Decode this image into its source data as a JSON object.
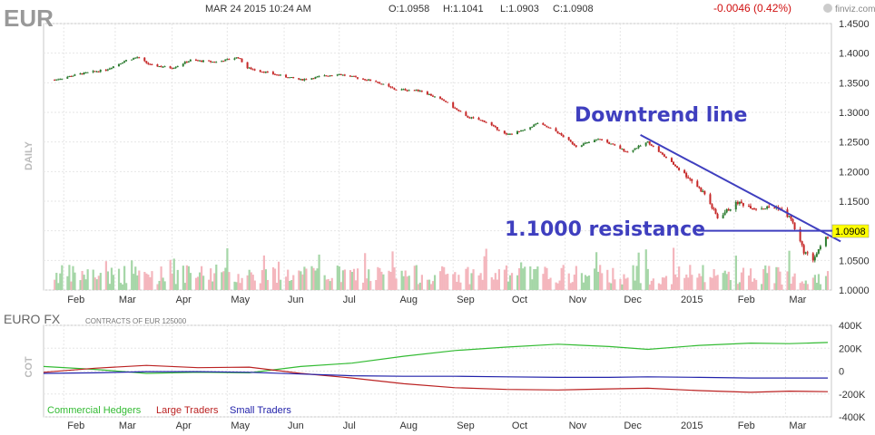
{
  "header": {
    "symbol": "EUR",
    "timestamp": "MAR 24 2015 10:24 AM",
    "open": "O:1.0958",
    "high": "H:1.1041",
    "low": "L:1.0903",
    "close": "C:1.0908",
    "change": "-0.0046 (0.42%)",
    "brand": "finviz.com"
  },
  "colors": {
    "up": "#2e7d32",
    "down": "#c62828",
    "vol_up": "#a5d6a7",
    "vol_down": "#f4b6bd",
    "annotation": "#3f3fbf",
    "commercial": "#33bb33",
    "large": "#bb2222",
    "small": "#2222aa",
    "change": "#d01010",
    "last_price_bg": "#ffff00"
  },
  "chart_data": [
    {
      "type": "candlestick",
      "period_label": "DAILY",
      "x_tick_labels": [
        "Feb",
        "Mar",
        "Apr",
        "May",
        "Jun",
        "Jul",
        "Aug",
        "Sep",
        "Oct",
        "Nov",
        "Dec",
        "2015",
        "Feb",
        "Mar"
      ],
      "y_tick_labels": [
        "1.4500",
        "1.4000",
        "1.3500",
        "1.3000",
        "1.2500",
        "1.2000",
        "1.1500",
        "1.1000",
        "1.0500",
        "1.0000"
      ],
      "ylim": [
        1.0,
        1.45
      ],
      "last_price_label": "1.0908",
      "approx_close_path": [
        [
          "2014-01-27",
          1.355
        ],
        [
          "2014-02-10",
          1.365
        ],
        [
          "2014-02-24",
          1.372
        ],
        [
          "2014-03-07",
          1.388
        ],
        [
          "2014-03-13",
          1.393
        ],
        [
          "2014-03-20",
          1.38
        ],
        [
          "2014-04-01",
          1.375
        ],
        [
          "2014-04-11",
          1.388
        ],
        [
          "2014-04-25",
          1.385
        ],
        [
          "2014-05-07",
          1.393
        ],
        [
          "2014-05-12",
          1.375
        ],
        [
          "2014-05-30",
          1.362
        ],
        [
          "2014-06-10",
          1.355
        ],
        [
          "2014-06-30",
          1.365
        ],
        [
          "2014-07-08",
          1.36
        ],
        [
          "2014-07-21",
          1.352
        ],
        [
          "2014-07-31",
          1.339
        ],
        [
          "2014-08-14",
          1.337
        ],
        [
          "2014-08-28",
          1.318
        ],
        [
          "2014-09-08",
          1.293
        ],
        [
          "2014-09-19",
          1.284
        ],
        [
          "2014-09-30",
          1.262
        ],
        [
          "2014-10-10",
          1.27
        ],
        [
          "2014-10-17",
          1.282
        ],
        [
          "2014-10-27",
          1.268
        ],
        [
          "2014-11-07",
          1.243
        ],
        [
          "2014-11-20",
          1.255
        ],
        [
          "2014-12-05",
          1.233
        ],
        [
          "2014-12-16",
          1.25
        ],
        [
          "2014-12-29",
          1.215
        ],
        [
          "2015-01-09",
          1.185
        ],
        [
          "2015-01-16",
          1.162
        ],
        [
          "2015-01-23",
          1.122
        ],
        [
          "2015-02-03",
          1.148
        ],
        [
          "2015-02-13",
          1.138
        ],
        [
          "2015-02-25",
          1.14
        ],
        [
          "2015-03-04",
          1.12
        ],
        [
          "2015-03-11",
          1.065
        ],
        [
          "2015-03-16",
          1.052
        ],
        [
          "2015-03-24",
          1.0908
        ]
      ],
      "annotations": [
        {
          "text": "Downtrend line",
          "from": [
            "2014-12-12",
            1.262
          ],
          "to": [
            "2015-03-31",
            1.082
          ]
        },
        {
          "text": "1.1000 resistance",
          "from": [
            "2015-01-12",
            1.1
          ],
          "to": [
            "2015-03-30",
            1.1
          ]
        }
      ]
    },
    {
      "type": "line",
      "title": "EURO FX",
      "subtitle": "CONTRACTS OF EUR 125000",
      "ylabel": "COT",
      "y_tick_labels": [
        "400K",
        "200K",
        "0",
        "-200K",
        "-400K"
      ],
      "ylim": [
        -400000,
        400000
      ],
      "x_tick_labels": [
        "Feb",
        "Mar",
        "Apr",
        "May",
        "Jun",
        "Jul",
        "Aug",
        "Sep",
        "Oct",
        "Nov",
        "Dec",
        "2015",
        "Feb",
        "Mar"
      ],
      "series": [
        {
          "name": "Commercial Hedgers",
          "points": [
            [
              "2014-01-21",
              40000
            ],
            [
              "2014-02-18",
              15000
            ],
            [
              "2014-03-18",
              -20000
            ],
            [
              "2014-04-15",
              -10000
            ],
            [
              "2014-05-13",
              -15000
            ],
            [
              "2014-06-10",
              40000
            ],
            [
              "2014-07-08",
              70000
            ],
            [
              "2014-08-05",
              130000
            ],
            [
              "2014-09-02",
              180000
            ],
            [
              "2014-09-30",
              210000
            ],
            [
              "2014-10-28",
              235000
            ],
            [
              "2014-11-25",
              215000
            ],
            [
              "2014-12-16",
              190000
            ],
            [
              "2015-01-13",
              225000
            ],
            [
              "2015-02-10",
              245000
            ],
            [
              "2015-03-03",
              240000
            ],
            [
              "2015-03-24",
              250000
            ]
          ]
        },
        {
          "name": "Large Traders",
          "points": [
            [
              "2014-01-21",
              -10000
            ],
            [
              "2014-02-18",
              25000
            ],
            [
              "2014-03-18",
              50000
            ],
            [
              "2014-04-15",
              30000
            ],
            [
              "2014-05-13",
              35000
            ],
            [
              "2014-06-10",
              -20000
            ],
            [
              "2014-07-08",
              -60000
            ],
            [
              "2014-08-05",
              -110000
            ],
            [
              "2014-09-02",
              -145000
            ],
            [
              "2014-09-30",
              -160000
            ],
            [
              "2014-10-28",
              -165000
            ],
            [
              "2014-11-25",
              -155000
            ],
            [
              "2014-12-16",
              -150000
            ],
            [
              "2015-01-13",
              -170000
            ],
            [
              "2015-02-10",
              -185000
            ],
            [
              "2015-03-03",
              -175000
            ],
            [
              "2015-03-24",
              -180000
            ]
          ]
        },
        {
          "name": "Small Traders",
          "points": [
            [
              "2014-01-21",
              -20000
            ],
            [
              "2014-02-18",
              -15000
            ],
            [
              "2014-03-18",
              -5000
            ],
            [
              "2014-04-15",
              -5000
            ],
            [
              "2014-05-13",
              -10000
            ],
            [
              "2014-06-10",
              -25000
            ],
            [
              "2014-07-08",
              -40000
            ],
            [
              "2014-08-05",
              -45000
            ],
            [
              "2014-09-02",
              -45000
            ],
            [
              "2014-09-30",
              -50000
            ],
            [
              "2014-10-28",
              -55000
            ],
            [
              "2014-11-25",
              -55000
            ],
            [
              "2014-12-16",
              -50000
            ],
            [
              "2015-01-13",
              -55000
            ],
            [
              "2015-02-10",
              -60000
            ],
            [
              "2015-03-03",
              -60000
            ],
            [
              "2015-03-24",
              -60000
            ]
          ]
        }
      ]
    }
  ]
}
